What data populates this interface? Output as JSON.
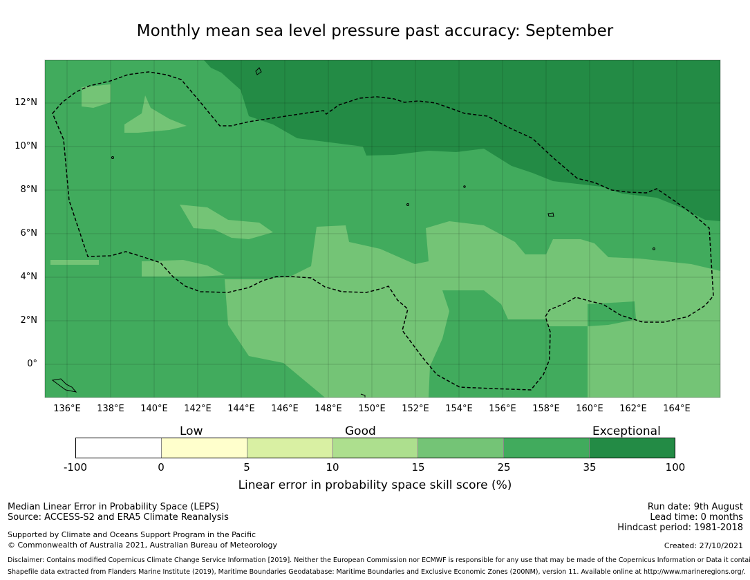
{
  "title": "Monthly mean sea level pressure past accuracy: September",
  "map": {
    "lat_ticks": [
      "12°N",
      "10°N",
      "8°N",
      "6°N",
      "4°N",
      "2°N",
      "0°"
    ],
    "lon_ticks": [
      "136°E",
      "138°E",
      "140°E",
      "142°E",
      "144°E",
      "146°E",
      "148°E",
      "150°E",
      "152°E",
      "154°E",
      "156°E",
      "158°E",
      "160°E",
      "162°E",
      "164°E"
    ],
    "colors": {
      "exceptional": "#238b45",
      "high_good": "#41ab5d",
      "good": "#74c476",
      "moderate": "#addf8e",
      "low": "#d9f0a3",
      "very_low": "#ffffcc",
      "none": "#ffffff"
    }
  },
  "colorbar": {
    "categories": [
      "Low",
      "Good",
      "Exceptional"
    ],
    "ticks": [
      "-100",
      "0",
      "5",
      "10",
      "15",
      "25",
      "35",
      "100"
    ],
    "colors": [
      "#ffffff",
      "#ffffcc",
      "#d9f0a3",
      "#addf8e",
      "#74c476",
      "#41ab5d",
      "#238b45"
    ],
    "label": "Linear error in probability space skill score (%)"
  },
  "footer": {
    "left1": "Median Linear Error in Probability Space (LEPS)",
    "left2": "Source: ACCESS-S2 and ERA5 Climate Reanalysis",
    "left3": "Supported by Climate and Oceans Support Program in the Pacific",
    "left4": "© Commonwealth of Australia 2021, Australian Bureau of Meteorology",
    "right1": "Run date: 9th August",
    "right2": "Lead time: 0 months",
    "right3": "Hindcast period: 1981-2018",
    "created": "Created: 27/10/2021",
    "disclaimer": "Disclaimer: Contains modified Copernicus Climate Change Service Information [2019]. Neither the European Commission nor ECMWF is responsible for any use that may be made of the Copernicus Information or Data it contains.",
    "shapefile": "Shapefile data extracted from Flanders Marine Institute (2019), Maritime Boundaries Geodatabase: Maritime Boundaries and Exclusive Economic Zones (200NM), version 11. Available online at http://www.marineregions.org/."
  }
}
